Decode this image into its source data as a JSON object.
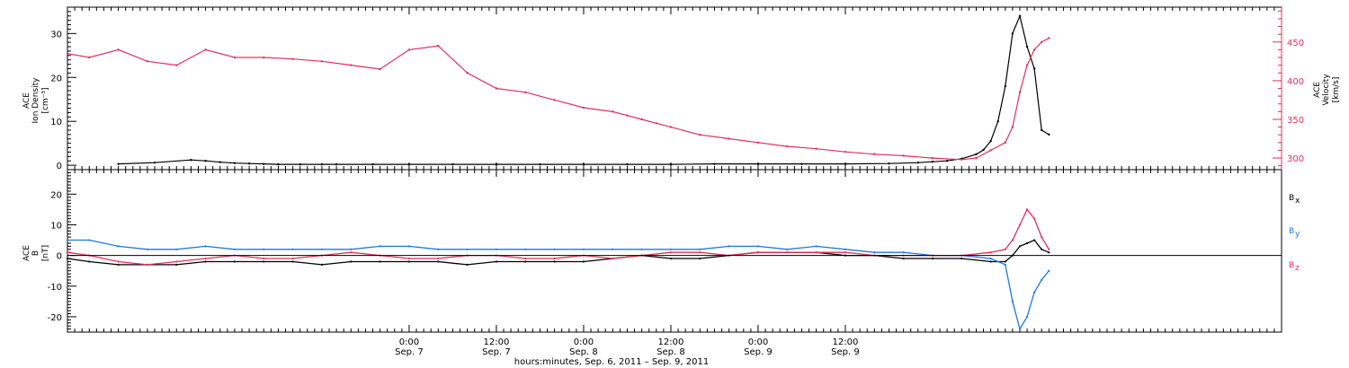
{
  "chart_data": [
    {
      "type": "scatter",
      "panel": "top",
      "left_axis_label": [
        "ACE",
        "Ion Density",
        "[cm⁻³]"
      ],
      "right_axis_label": [
        "ACE",
        "Velocity",
        "[km/s]"
      ],
      "ylim_left": [
        -1,
        36
      ],
      "ylim_right": [
        285,
        495
      ],
      "left_ticks": [
        0,
        10,
        20,
        30
      ],
      "right_ticks": [
        300,
        350,
        400,
        450
      ],
      "series": [
        {
          "name": "Ion Density",
          "color": "#000000",
          "axis": "left",
          "x": [
            -40,
            -35,
            -30,
            -28,
            -26,
            -24,
            -22,
            -20,
            -18,
            -15,
            -12,
            -10,
            -5,
            0,
            6,
            12,
            18,
            24,
            30,
            36,
            42,
            48,
            54,
            60,
            66,
            70,
            72,
            74,
            76,
            78,
            79,
            80,
            81,
            82,
            83,
            84,
            85,
            86,
            87,
            88
          ],
          "values": [
            0.3,
            0.6,
            1.2,
            1.0,
            0.7,
            0.5,
            0.4,
            0.3,
            0.2,
            0.2,
            0.2,
            0.2,
            0.2,
            0.2,
            0.2,
            0.2,
            0.2,
            0.2,
            0.2,
            0.2,
            0.3,
            0.3,
            0.3,
            0.3,
            0.4,
            0.6,
            0.8,
            1.0,
            1.5,
            2.5,
            3.5,
            5.5,
            10,
            18,
            30,
            34,
            27,
            22,
            8,
            7
          ]
        },
        {
          "name": "Velocity",
          "color": "#e0305a",
          "axis": "right",
          "x": [
            -47,
            -44,
            -40,
            -36,
            -32,
            -28,
            -24,
            -20,
            -16,
            -12,
            -8,
            -4,
            0,
            4,
            8,
            12,
            16,
            20,
            24,
            28,
            30,
            32,
            34,
            36,
            40,
            44,
            48,
            52,
            56,
            60,
            64,
            68,
            72,
            76,
            78,
            80,
            82,
            83,
            84,
            85,
            86,
            87,
            88
          ],
          "values": [
            435,
            430,
            440,
            425,
            420,
            440,
            430,
            430,
            428,
            425,
            420,
            415,
            440,
            445,
            410,
            390,
            385,
            375,
            365,
            360,
            355,
            350,
            345,
            340,
            330,
            325,
            320,
            315,
            312,
            308,
            305,
            303,
            300,
            298,
            300,
            310,
            320,
            340,
            385,
            420,
            440,
            450,
            455
          ]
        }
      ]
    },
    {
      "type": "line",
      "panel": "bottom",
      "left_axis_label": [
        "ACE",
        "B",
        "[nT]"
      ],
      "ylim": [
        -25,
        28
      ],
      "ticks": [
        -20,
        -10,
        0,
        10,
        20
      ],
      "series": [
        {
          "name": "Bx",
          "color": "#000000",
          "x": [
            -47,
            -44,
            -40,
            -36,
            -32,
            -28,
            -24,
            -20,
            -16,
            -12,
            -8,
            -4,
            0,
            4,
            8,
            12,
            16,
            20,
            24,
            28,
            32,
            36,
            40,
            44,
            48,
            52,
            56,
            60,
            64,
            68,
            72,
            76,
            80,
            82,
            83,
            84,
            85,
            86,
            87,
            88
          ],
          "values": [
            -1,
            -2,
            -3,
            -3,
            -3,
            -2,
            -2,
            -2,
            -2,
            -3,
            -2,
            -2,
            -2,
            -2,
            -3,
            -2,
            -2,
            -2,
            -2,
            -1,
            0,
            -1,
            -1,
            0,
            1,
            1,
            1,
            0,
            0,
            -1,
            -1,
            -1,
            -2,
            -2,
            0,
            3,
            4,
            5,
            2,
            1
          ]
        },
        {
          "name": "By",
          "color": "#1e78e0",
          "x": [
            -47,
            -44,
            -40,
            -36,
            -32,
            -28,
            -24,
            -20,
            -16,
            -12,
            -8,
            -4,
            0,
            4,
            8,
            12,
            16,
            20,
            24,
            28,
            32,
            36,
            40,
            44,
            48,
            52,
            56,
            60,
            64,
            68,
            72,
            76,
            80,
            82,
            83,
            84,
            85,
            86,
            87,
            88
          ],
          "values": [
            5,
            5,
            3,
            2,
            2,
            3,
            2,
            2,
            2,
            2,
            2,
            3,
            3,
            2,
            2,
            2,
            2,
            2,
            2,
            2,
            2,
            2,
            2,
            3,
            3,
            2,
            3,
            2,
            1,
            1,
            0,
            0,
            -1,
            -3,
            -15,
            -24,
            -20,
            -12,
            -8,
            -5
          ]
        },
        {
          "name": "Bz",
          "color": "#e0305a",
          "x": [
            -47,
            -44,
            -40,
            -36,
            -32,
            -28,
            -24,
            -20,
            -16,
            -12,
            -8,
            -4,
            0,
            4,
            8,
            12,
            16,
            20,
            24,
            28,
            32,
            36,
            40,
            44,
            48,
            52,
            56,
            60,
            64,
            68,
            72,
            76,
            80,
            82,
            83,
            84,
            85,
            86,
            87,
            88
          ],
          "values": [
            1,
            0,
            -2,
            -3,
            -2,
            -1,
            0,
            -1,
            -1,
            0,
            1,
            0,
            -1,
            -1,
            0,
            0,
            -1,
            -1,
            0,
            -1,
            0,
            1,
            1,
            0,
            1,
            1,
            1,
            1,
            0,
            0,
            0,
            0,
            1,
            2,
            5,
            10,
            15,
            12,
            6,
            2
          ]
        }
      ],
      "legend": [
        {
          "label": "B",
          "sub": "x",
          "color": "#000000"
        },
        {
          "label": "B",
          "sub": "y",
          "color": "#1e78e0"
        },
        {
          "label": "B",
          "sub": "z",
          "color": "#e0305a"
        }
      ]
    }
  ],
  "x_axis": {
    "range_hours": [
      -47,
      120
    ],
    "ticks": [
      {
        "hours": 0,
        "time": "0:00",
        "date": "Sep. 7"
      },
      {
        "hours": 12,
        "time": "12:00",
        "date": "Sep. 7"
      },
      {
        "hours": 24,
        "time": "0:00",
        "date": "Sep. 8"
      },
      {
        "hours": 36,
        "time": "12:00",
        "date": "Sep. 8"
      },
      {
        "hours": 48,
        "time": "0:00",
        "date": "Sep. 9"
      },
      {
        "hours": 60,
        "time": "12:00",
        "date": "Sep. 9"
      }
    ],
    "xlabel": "hours:minutes, Sep.  6, 2011 – Sep.  9, 2011"
  }
}
